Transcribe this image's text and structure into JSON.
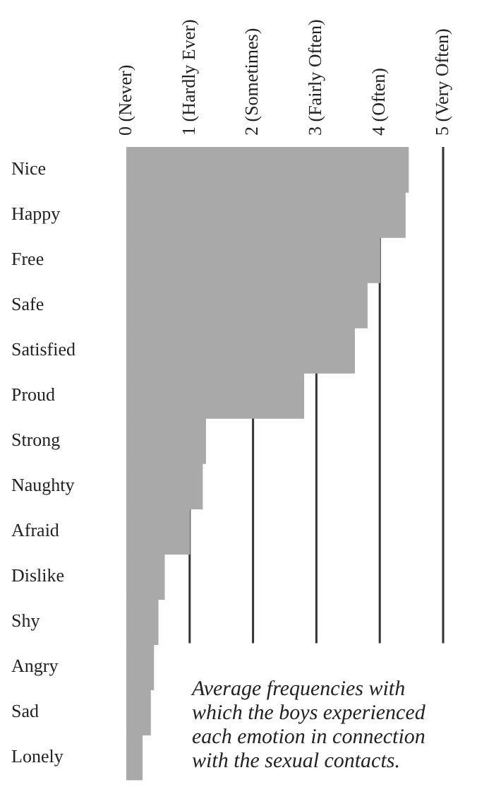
{
  "chart_data": {
    "type": "bar",
    "orientation": "horizontal",
    "categories": [
      "Nice",
      "Happy",
      "Free",
      "Safe",
      "Satisfied",
      "Proud",
      "Strong",
      "Naughty",
      "Afraid",
      "Dislike",
      "Shy",
      "Angry",
      "Sad",
      "Lonely"
    ],
    "values": [
      4.45,
      4.4,
      4.0,
      3.8,
      3.6,
      2.8,
      1.25,
      1.2,
      1.0,
      0.6,
      0.5,
      0.43,
      0.38,
      0.25
    ],
    "color": "#a9a9a9",
    "xlim": [
      0,
      5
    ],
    "xticks": [
      {
        "value": 0,
        "label": "0 (Never)"
      },
      {
        "value": 1,
        "label": "1 (Hardly Ever)"
      },
      {
        "value": 2,
        "label": "2 (Sometimes)"
      },
      {
        "value": 3,
        "label": "3 (Fairly Often)"
      },
      {
        "value": 4,
        "label": "4 (Often)"
      },
      {
        "value": 5,
        "label": "5 (Very Often)"
      }
    ],
    "grid": "x",
    "annotations": [
      "Average frequencies with which the boys experienced each emotion in connection with the sexual contacts."
    ]
  }
}
